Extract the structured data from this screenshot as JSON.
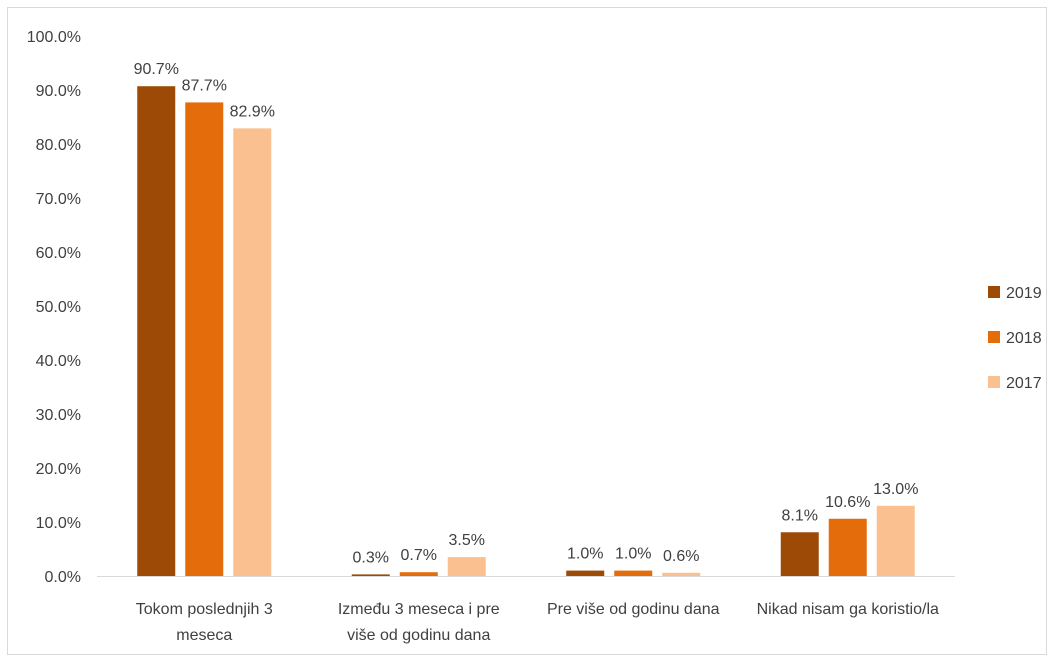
{
  "chart_data": {
    "type": "bar",
    "categories": [
      [
        "Tokom poslednjih 3",
        "meseca"
      ],
      [
        "Između 3 meseca i pre",
        "više od godinu dana"
      ],
      [
        "Pre više od godinu dana"
      ],
      [
        "Nikad nisam ga koristio/la"
      ]
    ],
    "series": [
      {
        "name": "2019",
        "color": "#9C4A05",
        "values": [
          90.7,
          0.3,
          1.0,
          8.1
        ],
        "labels": [
          "90.7%",
          "0.3%",
          "1.0%",
          "8.1%"
        ]
      },
      {
        "name": "2018",
        "color": "#E46C0A",
        "values": [
          87.7,
          0.7,
          1.0,
          10.6
        ],
        "labels": [
          "87.7%",
          "0.7%",
          "1.0%",
          "10.6%"
        ]
      },
      {
        "name": "2017",
        "color": "#FAC090",
        "values": [
          82.9,
          3.5,
          0.6,
          13.0
        ],
        "labels": [
          "82.9%",
          "3.5%",
          "0.6%",
          "13.0%"
        ]
      }
    ],
    "ylim": [
      0,
      100
    ],
    "yticks": [
      0,
      10,
      20,
      30,
      40,
      50,
      60,
      70,
      80,
      90,
      100
    ],
    "ytick_labels": [
      "0.0%",
      "10.0%",
      "20.0%",
      "30.0%",
      "40.0%",
      "50.0%",
      "60.0%",
      "70.0%",
      "80.0%",
      "90.0%",
      "100.0%"
    ],
    "grid": false,
    "legend_position": "right",
    "title": "",
    "xlabel": "",
    "ylabel": ""
  }
}
